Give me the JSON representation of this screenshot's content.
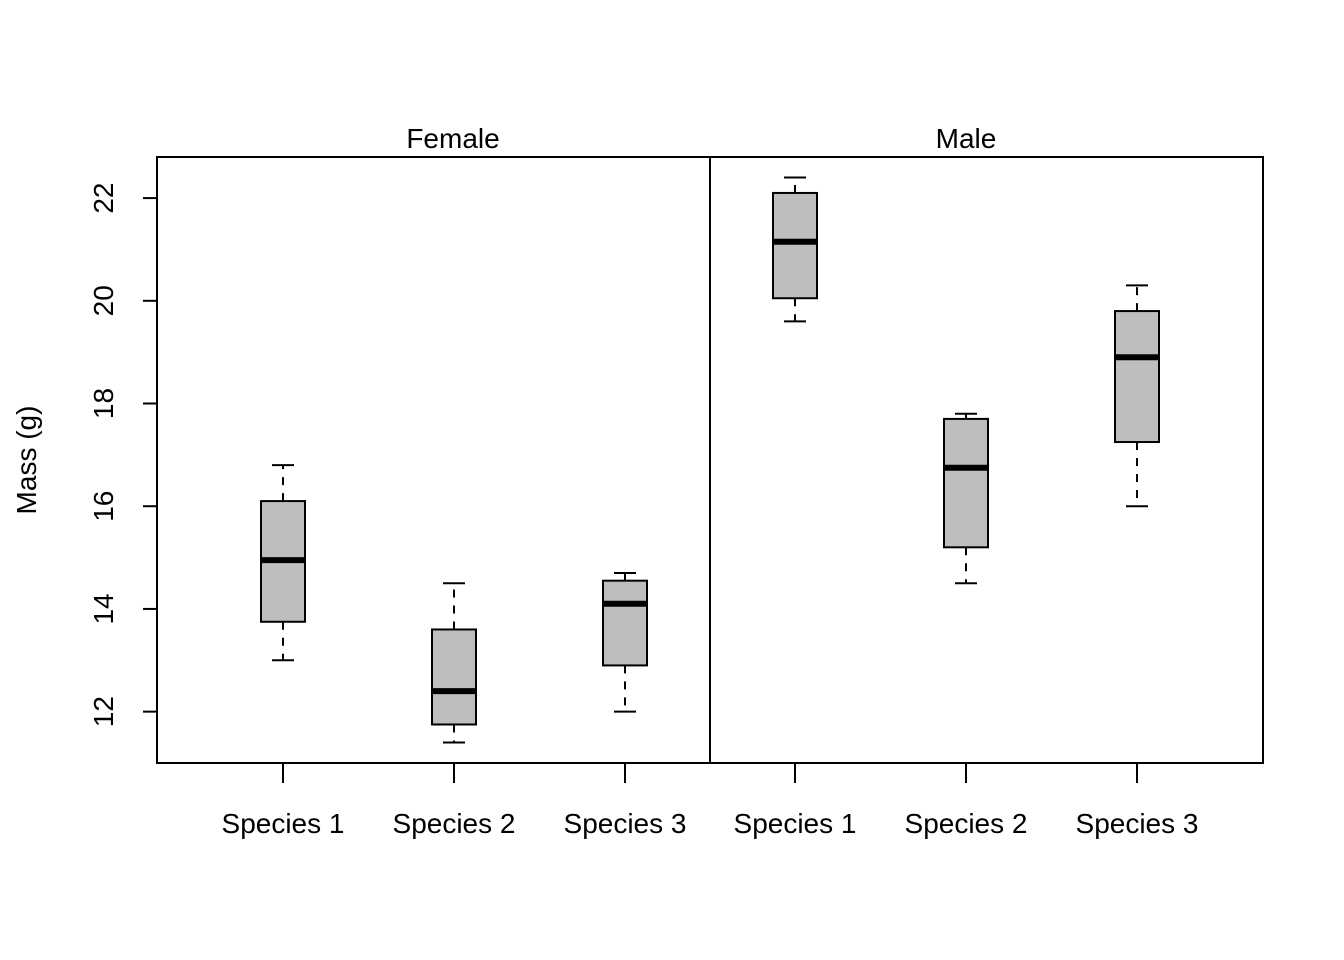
{
  "chart_data": {
    "type": "boxplot",
    "ylabel": "Mass (g)",
    "ylim": [
      11,
      22.8
    ],
    "y_ticks": [
      "12",
      "14",
      "16",
      "18",
      "20",
      "22"
    ],
    "grid": false,
    "box_fill": "#bebebe",
    "line_color": "#000000",
    "panels": [
      {
        "label": "Female",
        "groups": [
          {
            "category": "Species 1",
            "min": 13.0,
            "q1": 13.75,
            "median": 14.95,
            "q3": 16.1,
            "max": 16.8
          },
          {
            "category": "Species 2",
            "min": 11.4,
            "q1": 11.75,
            "median": 12.4,
            "q3": 13.6,
            "max": 14.5
          },
          {
            "category": "Species 3",
            "min": 12.0,
            "q1": 12.9,
            "median": 14.1,
            "q3": 14.55,
            "max": 14.7
          }
        ]
      },
      {
        "label": "Male",
        "groups": [
          {
            "category": "Species 1",
            "min": 19.6,
            "q1": 20.05,
            "median": 21.15,
            "q3": 22.1,
            "max": 22.4
          },
          {
            "category": "Species 2",
            "min": 14.5,
            "q1": 15.2,
            "median": 16.75,
            "q3": 17.7,
            "max": 17.8
          },
          {
            "category": "Species 3",
            "min": 16.0,
            "q1": 17.25,
            "median": 18.9,
            "q3": 19.8,
            "max": 20.3
          }
        ]
      }
    ]
  }
}
